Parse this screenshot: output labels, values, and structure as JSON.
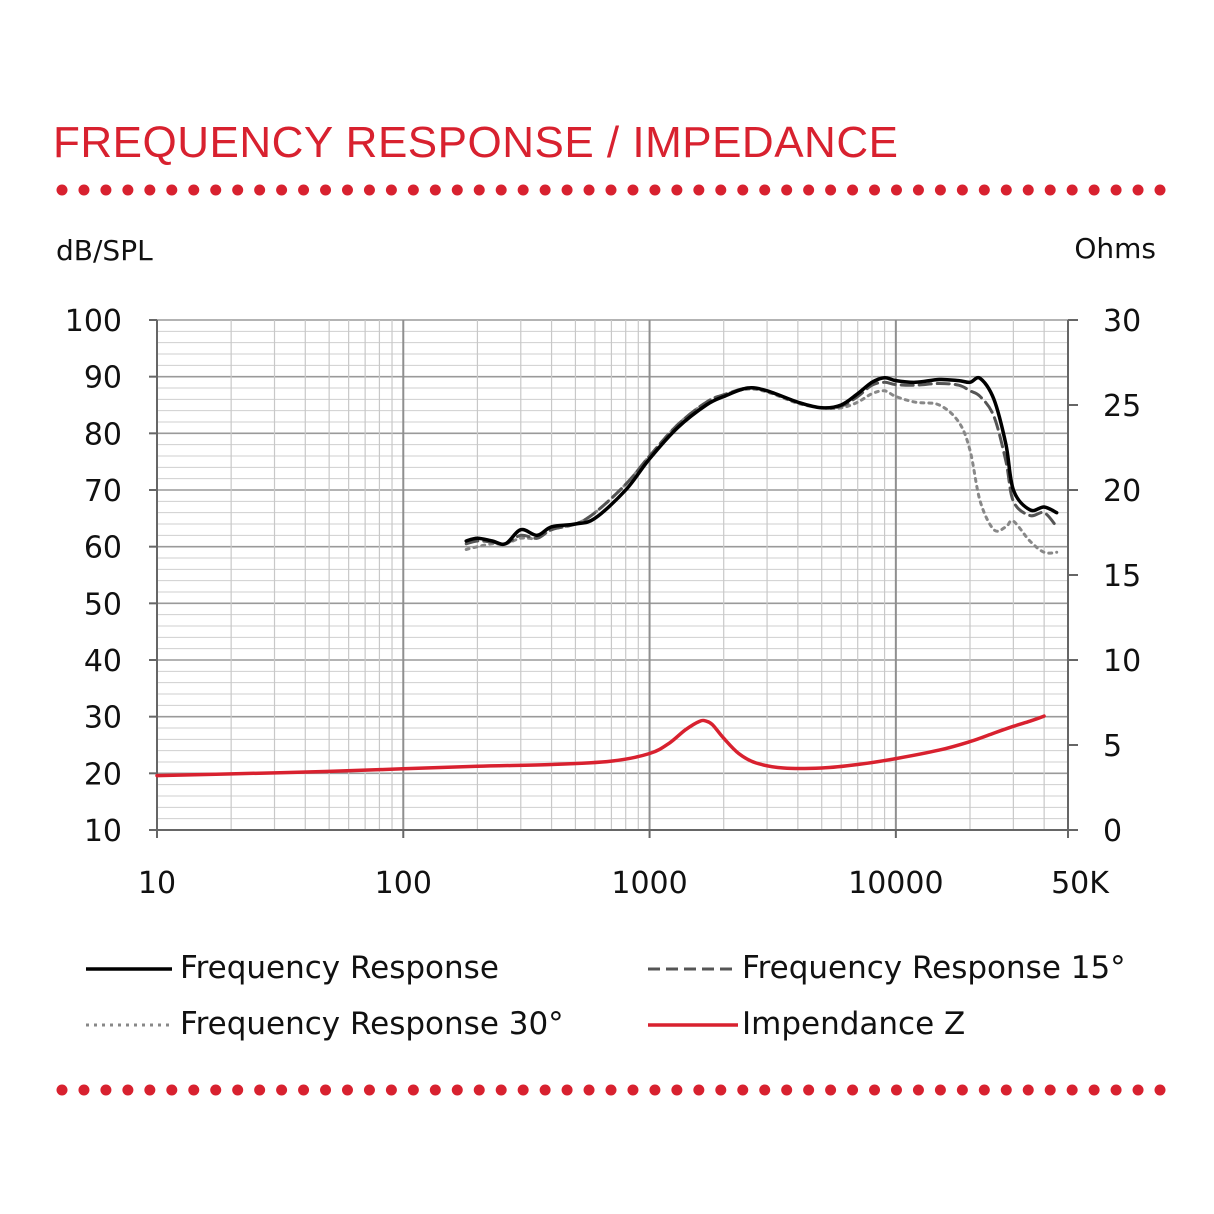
{
  "title": "FREQUENCY RESPONSE / IMPEDANCE",
  "colors": {
    "accent": "#d8212f",
    "frequency_response": "#000000",
    "frequency_response_15": "#555555",
    "frequency_response_30": "#888888",
    "impedance": "#d8212f",
    "grid": "#b8b8b8"
  },
  "chart_data": {
    "type": "line",
    "xscale": "log",
    "xlim": [
      10,
      50000
    ],
    "ylim_left": [
      10,
      100
    ],
    "ylim_right": [
      0,
      30
    ],
    "ylabel_left": "dB/SPL",
    "ylabel_right": "Ohms",
    "x_ticks": [
      "10",
      "100",
      "1000",
      "10000",
      "50K"
    ],
    "y_left_ticks": [
      "100",
      "90",
      "80",
      "70",
      "60",
      "50",
      "40",
      "30",
      "20",
      "10"
    ],
    "y_right_ticks": [
      "30",
      "25",
      "20",
      "15",
      "10",
      "5",
      "0"
    ],
    "grid": true,
    "legend_position": "bottom",
    "series": [
      {
        "name": "Frequency Response",
        "axis": "left",
        "style": "solid",
        "x": [
          180,
          200,
          230,
          260,
          300,
          350,
          400,
          500,
          600,
          800,
          1000,
          1300,
          1700,
          2000,
          2500,
          3000,
          4000,
          5000,
          6000,
          7000,
          8000,
          9000,
          10000,
          12000,
          15000,
          18000,
          20000,
          22000,
          25000,
          28000,
          30000,
          35000,
          40000,
          45000
        ],
        "y": [
          61,
          61.5,
          61,
          60.5,
          63,
          62,
          63.5,
          64,
          65,
          70,
          75.5,
          81,
          85,
          86.5,
          88,
          87.5,
          85.5,
          84.5,
          85,
          87,
          89,
          89.8,
          89.3,
          89,
          89.5,
          89.3,
          89,
          89.7,
          86,
          78,
          70,
          66.5,
          67,
          66
        ]
      },
      {
        "name": "Frequency Response 15°",
        "axis": "left",
        "style": "dashed",
        "x": [
          180,
          200,
          230,
          260,
          300,
          350,
          400,
          500,
          600,
          800,
          1000,
          1300,
          1700,
          2000,
          2500,
          3000,
          4000,
          5000,
          6000,
          7000,
          8000,
          9000,
          10000,
          12000,
          15000,
          18000,
          20000,
          22000,
          25000,
          28000,
          30000,
          35000,
          40000,
          45000
        ],
        "y": [
          60.5,
          61,
          60.8,
          60.5,
          62,
          61.5,
          63,
          64,
          66,
          71,
          76,
          81.5,
          85.5,
          86.8,
          88,
          87.5,
          85.5,
          84.5,
          84.8,
          86.5,
          88.5,
          89,
          88.6,
          88.5,
          88.8,
          88.5,
          87.5,
          86.5,
          83,
          75,
          68,
          65.5,
          66,
          63.5
        ]
      },
      {
        "name": "Frequency Response 30°",
        "axis": "left",
        "style": "dotted",
        "x": [
          180,
          200,
          230,
          260,
          300,
          350,
          400,
          500,
          600,
          800,
          1000,
          1300,
          1700,
          2000,
          2500,
          3000,
          4000,
          5000,
          6000,
          7000,
          8000,
          9000,
          10000,
          12000,
          15000,
          18000,
          20000,
          22000,
          25000,
          28000,
          30000,
          35000,
          40000,
          45000
        ],
        "y": [
          59.5,
          60,
          60.5,
          60.5,
          61.5,
          61.5,
          63,
          64,
          66,
          71,
          76,
          81.5,
          85.5,
          86.8,
          87.8,
          87.3,
          85.3,
          84.5,
          84.5,
          85.5,
          87,
          87.5,
          86.5,
          85.5,
          85,
          82,
          77,
          68,
          63,
          63.5,
          64.5,
          61,
          59,
          59
        ]
      },
      {
        "name": "Impendance Z",
        "axis": "right",
        "style": "solid",
        "x": [
          10,
          20,
          50,
          100,
          200,
          400,
          700,
          1000,
          1200,
          1400,
          1600,
          1700,
          1800,
          2000,
          2300,
          2700,
          3500,
          5000,
          7000,
          10000,
          15000,
          20000,
          25000,
          30000,
          35000,
          40000
        ],
        "y": [
          3.2,
          3.3,
          3.45,
          3.6,
          3.75,
          3.85,
          4.05,
          4.5,
          5.1,
          5.9,
          6.4,
          6.4,
          6.2,
          5.4,
          4.5,
          3.95,
          3.65,
          3.65,
          3.85,
          4.2,
          4.7,
          5.2,
          5.7,
          6.1,
          6.4,
          6.7
        ]
      }
    ]
  },
  "legend": {
    "items": [
      {
        "label": "Frequency Response"
      },
      {
        "label": "Frequency Response 15°"
      },
      {
        "label": "Frequency Response 30°"
      },
      {
        "label": "Impendance Z"
      }
    ]
  }
}
